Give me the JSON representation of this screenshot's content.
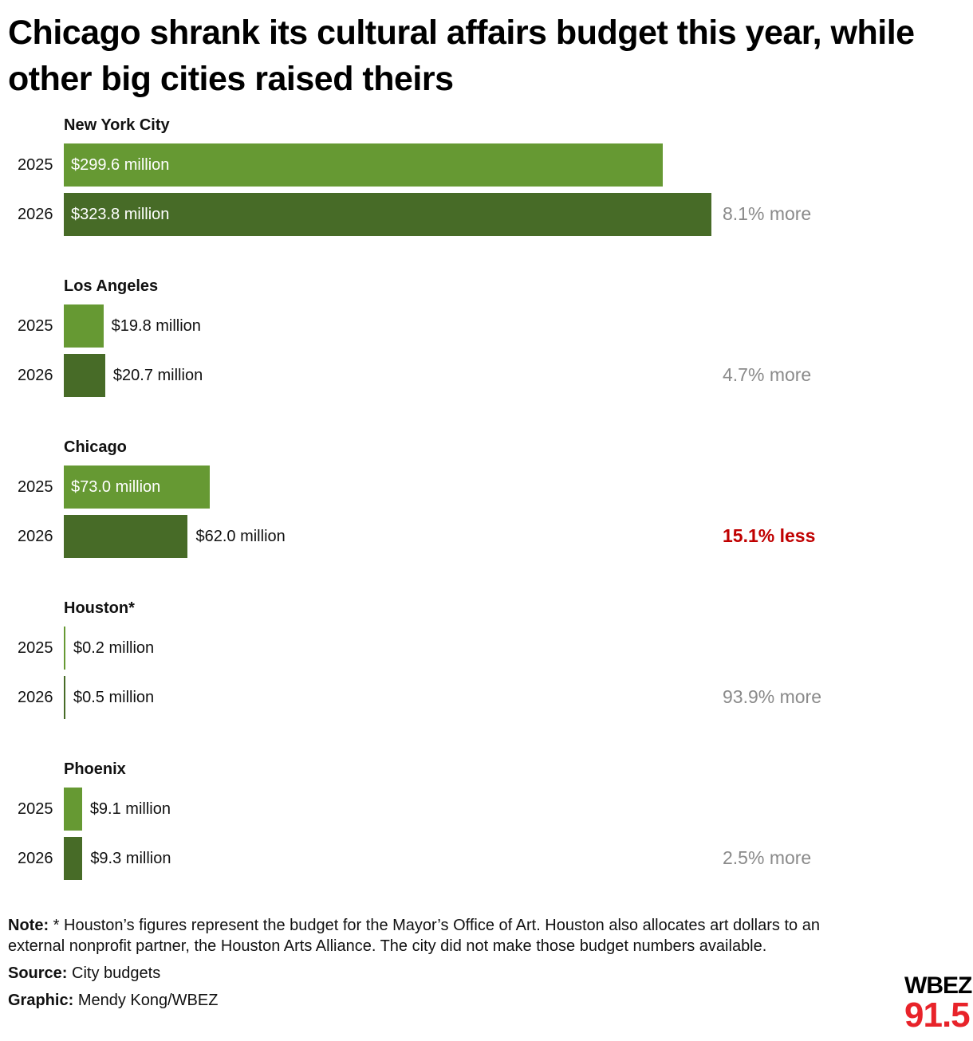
{
  "title": "Chicago shrank its cultural affairs budget this year, while other big cities raised theirs",
  "chart_data": {
    "type": "bar",
    "orientation": "horizontal",
    "title": "Chicago shrank its cultural affairs budget this year, while other big cities raised theirs",
    "unit": "million dollars",
    "years": [
      "2025",
      "2026"
    ],
    "colors": {
      "2025": "#669933",
      "2026": "#476b27",
      "more": "#8a8a8a",
      "less": "#c00000"
    },
    "groups": [
      {
        "city": "New York City",
        "values": [
          299.6,
          323.8
        ],
        "labels": [
          "$299.6 million",
          "$323.8 million"
        ],
        "change": "8.1% more",
        "direction": "more"
      },
      {
        "city": "Los Angeles",
        "values": [
          19.8,
          20.7
        ],
        "labels": [
          "$19.8 million",
          "$20.7 million"
        ],
        "change": "4.7% more",
        "direction": "more"
      },
      {
        "city": "Chicago",
        "values": [
          73.0,
          62.0
        ],
        "labels": [
          "$73.0 million",
          "$62.0 million"
        ],
        "change": "15.1% less",
        "direction": "less"
      },
      {
        "city": "Houston*",
        "values": [
          0.2,
          0.5
        ],
        "labels": [
          "$0.2 million",
          "$0.5 million"
        ],
        "change": "93.9% more",
        "direction": "more"
      },
      {
        "city": "Phoenix",
        "values": [
          9.1,
          9.3
        ],
        "labels": [
          "$9.1 million",
          "$9.3 million"
        ],
        "change": "2.5% more",
        "direction": "more"
      }
    ]
  },
  "notes": {
    "note_label": "Note:",
    "note_text": "* Houston’s figures represent the budget for the Mayor’s Office of Art. Houston also allocates art dollars to an external nonprofit partner, the Houston Arts Alliance. The city did not make those budget numbers available.",
    "source_label": "Source:",
    "source_text": "City budgets",
    "graphic_label": "Graphic:",
    "graphic_text": "Mendy Kong/WBEZ"
  },
  "logo": {
    "top": "WBEZ",
    "bottom": "91.5"
  }
}
